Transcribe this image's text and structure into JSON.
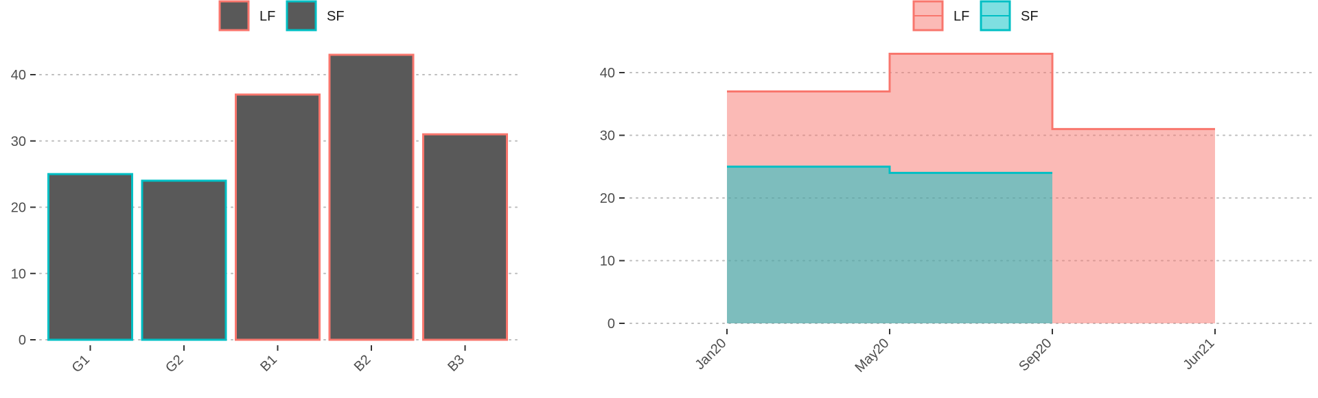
{
  "colors": {
    "LF": "#F8766D",
    "SF": "#00BFC4",
    "bar_fill": "#595959",
    "grid": "#bdbdbd",
    "text": "#4d4d4d"
  },
  "chart_data": [
    {
      "type": "bar",
      "title": "",
      "xlabel": "",
      "ylabel": "",
      "categories": [
        "G1",
        "G2",
        "B1",
        "B2",
        "B3"
      ],
      "values": [
        25,
        24,
        37,
        43,
        31
      ],
      "outline_group": [
        "SF",
        "SF",
        "LF",
        "LF",
        "LF"
      ],
      "legend": {
        "entries": [
          "LF",
          "SF"
        ],
        "position": "top-center"
      },
      "ylim": [
        0,
        45
      ],
      "yticks": [
        0,
        10,
        20,
        30,
        40
      ],
      "grid": "horizontal-dotted"
    },
    {
      "type": "area",
      "step": true,
      "title": "",
      "xlabel": "",
      "ylabel": "",
      "x_ticks": [
        "Jan20",
        "May20",
        "Sep20",
        "Jun21"
      ],
      "series": [
        {
          "name": "LF",
          "x": [
            "Jan20",
            "May20",
            "Sep20",
            "Jun21"
          ],
          "values": [
            37,
            43,
            31,
            31
          ]
        },
        {
          "name": "SF",
          "x": [
            "Jan20",
            "May20",
            "Sep20"
          ],
          "values": [
            25,
            24,
            24
          ]
        }
      ],
      "legend": {
        "entries": [
          "LF",
          "SF"
        ],
        "position": "top-center"
      },
      "ylim": [
        0,
        45
      ],
      "yticks": [
        0,
        10,
        20,
        30,
        40
      ],
      "grid": "horizontal-dotted"
    }
  ]
}
